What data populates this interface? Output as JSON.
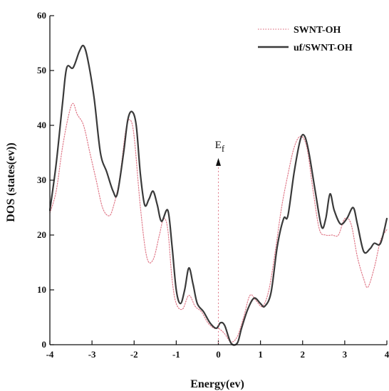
{
  "chart_data": {
    "type": "line",
    "title": "",
    "xlabel": "Energy(ev)",
    "ylabel": "DOS (states(ev))",
    "xlim": [
      -4,
      4
    ],
    "ylim": [
      0,
      60
    ],
    "xticks": [
      -4,
      -3,
      -2,
      -1,
      0,
      1,
      2,
      3,
      4
    ],
    "yticks": [
      0,
      10,
      20,
      30,
      40,
      50,
      60
    ],
    "xtick_labels": [
      "-4",
      "-3",
      "-2",
      "-1",
      "0",
      "1",
      "2",
      "3",
      "4"
    ],
    "ytick_labels": [
      "0",
      "10",
      "20",
      "30",
      "40",
      "50",
      "60"
    ],
    "grid": false,
    "legend": "top-right",
    "annotation": {
      "label": "E",
      "subscript": "f",
      "x": 0,
      "y": 33
    },
    "series": [
      {
        "name": "SWNT-OH",
        "color": "#e07a8a",
        "style": "dotted",
        "points": [
          [
            -4.0,
            24
          ],
          [
            -3.85,
            28
          ],
          [
            -3.7,
            36
          ],
          [
            -3.55,
            42
          ],
          [
            -3.45,
            44
          ],
          [
            -3.35,
            42
          ],
          [
            -3.2,
            40
          ],
          [
            -3.05,
            35
          ],
          [
            -2.9,
            30
          ],
          [
            -2.75,
            25
          ],
          [
            -2.6,
            23.5
          ],
          [
            -2.5,
            25
          ],
          [
            -2.35,
            30
          ],
          [
            -2.2,
            39
          ],
          [
            -2.1,
            41
          ],
          [
            -2.0,
            38
          ],
          [
            -1.85,
            25
          ],
          [
            -1.7,
            16
          ],
          [
            -1.55,
            15.5
          ],
          [
            -1.4,
            20
          ],
          [
            -1.3,
            23
          ],
          [
            -1.2,
            21
          ],
          [
            -1.1,
            12
          ],
          [
            -1.0,
            7.5
          ],
          [
            -0.85,
            6.5
          ],
          [
            -0.7,
            9
          ],
          [
            -0.55,
            7
          ],
          [
            -0.4,
            6
          ],
          [
            -0.25,
            4
          ],
          [
            -0.1,
            3
          ],
          [
            0.0,
            3
          ],
          [
            0.15,
            2
          ],
          [
            0.3,
            0.5
          ],
          [
            0.45,
            1.5
          ],
          [
            0.6,
            5
          ],
          [
            0.75,
            9
          ],
          [
            0.9,
            8
          ],
          [
            1.05,
            7
          ],
          [
            1.2,
            10
          ],
          [
            1.35,
            17
          ],
          [
            1.5,
            25
          ],
          [
            1.65,
            31
          ],
          [
            1.8,
            36
          ],
          [
            1.95,
            38
          ],
          [
            2.1,
            36
          ],
          [
            2.25,
            28
          ],
          [
            2.4,
            21
          ],
          [
            2.55,
            20
          ],
          [
            2.7,
            20
          ],
          [
            2.85,
            20
          ],
          [
            3.0,
            23
          ],
          [
            3.15,
            22
          ],
          [
            3.3,
            16
          ],
          [
            3.45,
            12
          ],
          [
            3.55,
            10.5
          ],
          [
            3.7,
            14
          ],
          [
            3.85,
            19
          ],
          [
            4.0,
            21
          ]
        ]
      },
      {
        "name": "uf/SWNT-OH",
        "color": "#3a3a3a",
        "style": "solid",
        "points": [
          [
            -4.0,
            24.5
          ],
          [
            -3.85,
            33
          ],
          [
            -3.7,
            44
          ],
          [
            -3.6,
            50.5
          ],
          [
            -3.45,
            50.5
          ],
          [
            -3.3,
            53.5
          ],
          [
            -3.2,
            54.5
          ],
          [
            -3.1,
            52
          ],
          [
            -2.95,
            45
          ],
          [
            -2.8,
            35
          ],
          [
            -2.65,
            31.5
          ],
          [
            -2.5,
            28
          ],
          [
            -2.4,
            27.5
          ],
          [
            -2.25,
            35
          ],
          [
            -2.15,
            41
          ],
          [
            -2.05,
            42.5
          ],
          [
            -1.95,
            40
          ],
          [
            -1.85,
            31
          ],
          [
            -1.75,
            25.5
          ],
          [
            -1.65,
            26.5
          ],
          [
            -1.55,
            28
          ],
          [
            -1.45,
            25.5
          ],
          [
            -1.35,
            22.5
          ],
          [
            -1.2,
            24.5
          ],
          [
            -1.1,
            18
          ],
          [
            -1.0,
            10
          ],
          [
            -0.9,
            7.5
          ],
          [
            -0.8,
            10
          ],
          [
            -0.7,
            14
          ],
          [
            -0.6,
            11
          ],
          [
            -0.5,
            7.5
          ],
          [
            -0.35,
            6
          ],
          [
            -0.2,
            4
          ],
          [
            -0.05,
            3
          ],
          [
            0.05,
            4
          ],
          [
            0.15,
            3.5
          ],
          [
            0.3,
            0.3
          ],
          [
            0.45,
            0.3
          ],
          [
            0.55,
            3
          ],
          [
            0.7,
            6.5
          ],
          [
            0.85,
            8.5
          ],
          [
            1.0,
            7.5
          ],
          [
            1.1,
            7
          ],
          [
            1.25,
            9.5
          ],
          [
            1.4,
            18
          ],
          [
            1.55,
            23
          ],
          [
            1.65,
            23.5
          ],
          [
            1.8,
            31.5
          ],
          [
            1.95,
            37.5
          ],
          [
            2.05,
            38
          ],
          [
            2.15,
            35
          ],
          [
            2.3,
            28
          ],
          [
            2.45,
            21.5
          ],
          [
            2.55,
            23
          ],
          [
            2.65,
            27.5
          ],
          [
            2.75,
            24.5
          ],
          [
            2.9,
            22
          ],
          [
            3.05,
            23
          ],
          [
            3.2,
            25
          ],
          [
            3.3,
            22
          ],
          [
            3.45,
            17
          ],
          [
            3.6,
            17.5
          ],
          [
            3.7,
            18.5
          ],
          [
            3.85,
            18.5
          ],
          [
            4.0,
            23
          ]
        ]
      }
    ]
  }
}
